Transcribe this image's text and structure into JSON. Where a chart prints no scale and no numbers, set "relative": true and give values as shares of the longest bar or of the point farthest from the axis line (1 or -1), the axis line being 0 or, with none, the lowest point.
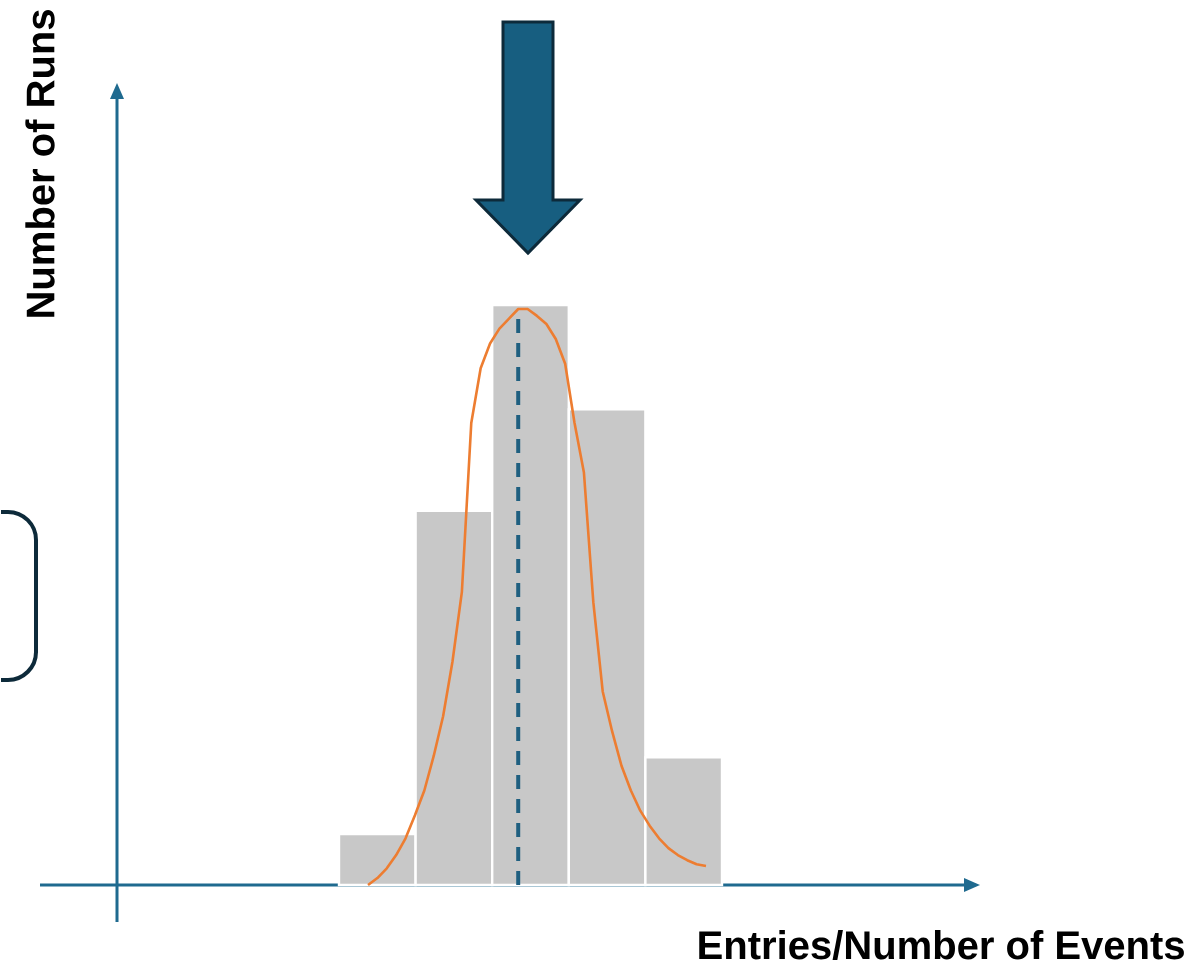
{
  "chart_data": [
    {
      "type": "bar",
      "relative": true,
      "xlabel": "Entries/Number of Events",
      "ylabel": "Number of Runs",
      "categories": [
        null,
        null,
        null,
        null,
        null
      ],
      "values": [
        0.088,
        0.645,
        1,
        0.82,
        0.22
      ],
      "color": "#c8c8c8"
    },
    {
      "type": "line",
      "relative": true,
      "color": "#ed7d31",
      "categories": [
        null,
        null,
        null,
        null,
        null,
        null,
        null,
        null,
        null,
        null,
        null,
        null,
        null,
        null,
        null,
        null,
        null,
        null,
        null,
        null,
        null,
        null,
        null,
        null,
        null,
        null,
        null,
        null,
        null,
        null,
        null,
        null,
        null,
        null,
        null,
        null,
        null
      ],
      "values": [
        0,
        0.012,
        0.029,
        0.052,
        0.081,
        0.121,
        0.164,
        0.224,
        0.293,
        0.388,
        0.509,
        0.802,
        0.897,
        0.94,
        0.966,
        0.983,
        1,
        1,
        0.988,
        0.974,
        0.948,
        0.905,
        0.802,
        0.716,
        0.491,
        0.336,
        0.267,
        0.207,
        0.164,
        0.129,
        0.103,
        0.081,
        0.064,
        0.052,
        0.043,
        0.036,
        0.033
      ]
    }
  ]
}
